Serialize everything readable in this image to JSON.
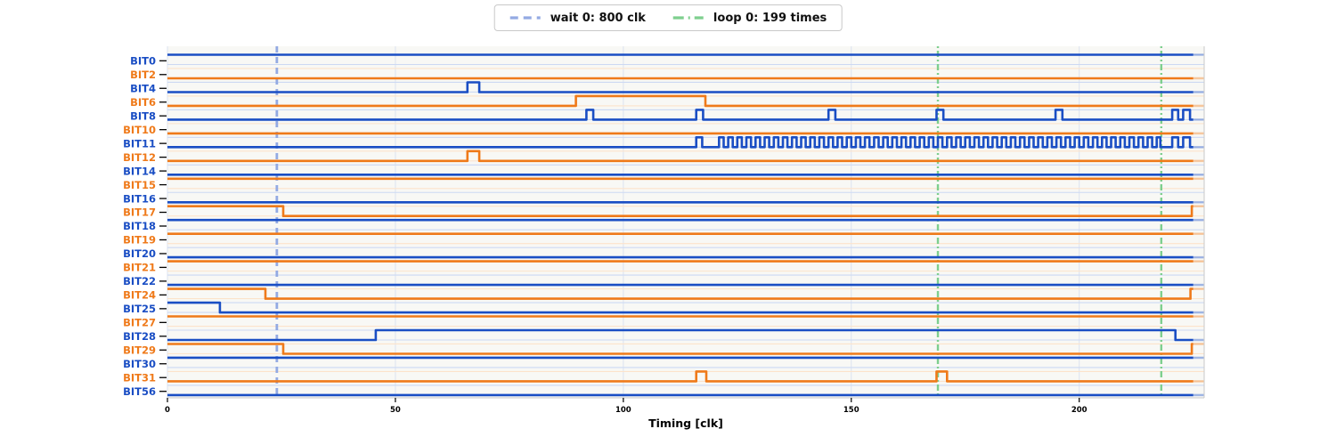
{
  "figure": {
    "xlabel": "Timing [clk]",
    "x_ticks": [
      0,
      50,
      100,
      150,
      200
    ],
    "x_max": 227.3,
    "solid_end_clk": 225
  },
  "legend": {
    "items": [
      {
        "id": "wait",
        "label": "wait 0: 800 clk",
        "color": "#93aae3",
        "style": "dashed"
      },
      {
        "id": "loop",
        "label": "loop 0: 199 times",
        "color": "#7ecf8e",
        "style": "dashdot"
      }
    ]
  },
  "markers": {
    "wait_lines_clk": [
      24
    ],
    "loop_lines_clk": [
      169,
      218
    ]
  },
  "colors": {
    "blue": "#1a4ec4",
    "orange": "#ef7a1a",
    "blue_faint": "#ccd9f3",
    "orange_faint": "#fce3cb",
    "grid": "#dde3f0",
    "plot_bg": "#f8f8f5",
    "spine": "#c9c9c9",
    "tick_text": "#000000"
  },
  "chart_data": {
    "type": "digital-timing",
    "title": "",
    "xlabel": "Timing [clk]",
    "x_range": [
      0,
      227.3
    ],
    "x_ticks": [
      0,
      50,
      100,
      150,
      200
    ],
    "legend_entries": [
      "wait 0: 800 clk",
      "loop 0: 199 times"
    ],
    "wait_marker_clk": [
      24
    ],
    "loop_marker_clk": [
      169,
      218
    ],
    "signals": [
      {
        "name": "BIT0",
        "color": "blue",
        "transitions": [
          [
            0,
            1
          ]
        ]
      },
      {
        "name": "BIT2",
        "color": "orange",
        "transitions": [
          [
            0,
            0
          ]
        ]
      },
      {
        "name": "BIT4",
        "color": "blue",
        "transitions": [
          [
            0,
            0
          ],
          [
            65.8,
            1
          ],
          [
            68.4,
            0
          ]
        ]
      },
      {
        "name": "BIT6",
        "color": "orange",
        "transitions": [
          [
            0,
            0
          ],
          [
            89.6,
            1
          ],
          [
            118,
            0
          ]
        ]
      },
      {
        "name": "BIT8",
        "color": "blue",
        "transitions": [
          [
            0,
            0
          ],
          [
            91.9,
            1
          ],
          [
            93.4,
            0
          ],
          [
            116,
            1
          ],
          [
            117.5,
            0
          ],
          [
            145,
            1
          ],
          [
            146.5,
            0
          ],
          [
            168.7,
            1
          ],
          [
            170.2,
            0
          ],
          [
            194.8,
            1
          ],
          [
            196.3,
            0
          ],
          [
            220.4,
            1
          ],
          [
            221.7,
            0
          ],
          [
            222.8,
            1
          ],
          [
            224.3,
            0
          ]
        ]
      },
      {
        "name": "BIT10",
        "color": "orange",
        "transitions": [
          [
            0,
            0
          ]
        ]
      },
      {
        "name": "BIT11",
        "color": "blue",
        "transitions": [
          [
            0,
            0
          ],
          [
            116,
            1
          ],
          [
            117.3,
            0
          ],
          [
            220.4,
            1
          ],
          [
            221.7,
            0
          ],
          [
            222.8,
            1
          ],
          [
            224.3,
            0
          ]
        ],
        "toggle": {
          "start": 121,
          "end": 217.8,
          "period": 2
        }
      },
      {
        "name": "BIT12",
        "color": "orange",
        "transitions": [
          [
            0,
            0
          ],
          [
            65.8,
            1
          ],
          [
            68.4,
            0
          ]
        ]
      },
      {
        "name": "BIT14",
        "color": "blue",
        "transitions": [
          [
            0,
            0
          ]
        ]
      },
      {
        "name": "BIT15",
        "color": "orange",
        "transitions": [
          [
            0,
            1
          ]
        ]
      },
      {
        "name": "BIT16",
        "color": "blue",
        "transitions": [
          [
            0,
            0
          ]
        ]
      },
      {
        "name": "BIT17",
        "color": "orange",
        "transitions": [
          [
            0,
            1
          ],
          [
            25.4,
            0
          ],
          [
            224.7,
            1
          ]
        ]
      },
      {
        "name": "BIT18",
        "color": "blue",
        "transitions": [
          [
            0,
            1
          ]
        ]
      },
      {
        "name": "BIT19",
        "color": "orange",
        "transitions": [
          [
            0,
            1
          ]
        ]
      },
      {
        "name": "BIT20",
        "color": "blue",
        "transitions": [
          [
            0,
            0
          ]
        ]
      },
      {
        "name": "BIT21",
        "color": "orange",
        "transitions": [
          [
            0,
            1
          ]
        ]
      },
      {
        "name": "BIT22",
        "color": "blue",
        "transitions": [
          [
            0,
            0
          ]
        ]
      },
      {
        "name": "BIT24",
        "color": "orange",
        "transitions": [
          [
            0,
            1
          ],
          [
            21.5,
            0
          ],
          [
            224.4,
            1
          ]
        ]
      },
      {
        "name": "BIT25",
        "color": "blue",
        "transitions": [
          [
            0,
            1
          ],
          [
            11.5,
            0
          ]
        ]
      },
      {
        "name": "BIT27",
        "color": "orange",
        "transitions": [
          [
            0,
            1
          ]
        ]
      },
      {
        "name": "BIT28",
        "color": "blue",
        "transitions": [
          [
            0,
            0
          ],
          [
            45.7,
            1
          ],
          [
            221.1,
            0
          ]
        ]
      },
      {
        "name": "BIT29",
        "color": "orange",
        "transitions": [
          [
            0,
            1
          ],
          [
            25.4,
            0
          ],
          [
            224.7,
            1
          ]
        ]
      },
      {
        "name": "BIT30",
        "color": "blue",
        "transitions": [
          [
            0,
            1
          ]
        ]
      },
      {
        "name": "BIT31",
        "color": "orange",
        "transitions": [
          [
            0,
            0
          ],
          [
            116,
            1
          ],
          [
            118.2,
            0
          ],
          [
            168.7,
            1
          ],
          [
            171,
            0
          ]
        ]
      },
      {
        "name": "BIT56",
        "color": "blue",
        "transitions": [
          [
            0,
            0
          ]
        ]
      }
    ]
  }
}
